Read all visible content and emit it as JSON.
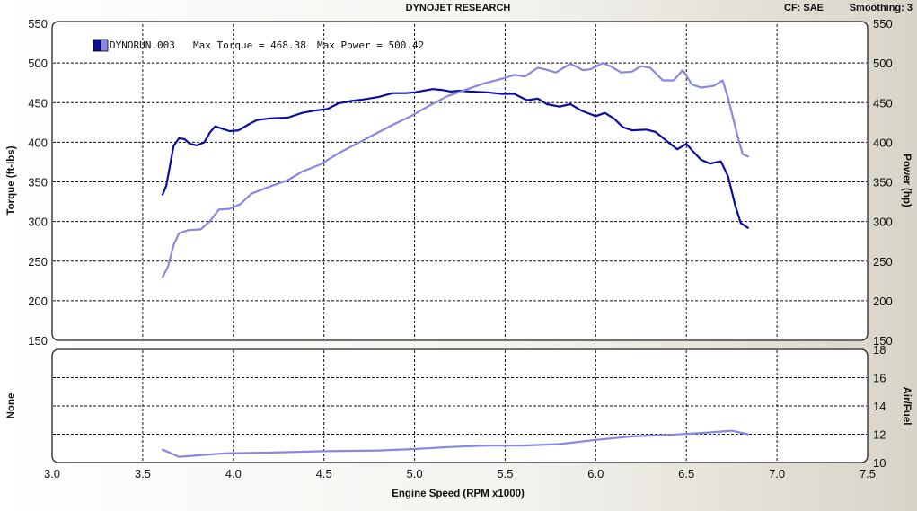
{
  "header": {
    "title": "DYNOJET RESEARCH",
    "cf_label": "CF: SAE",
    "smoothing_label": "Smoothing: 3"
  },
  "chart_data": [
    {
      "type": "line",
      "x_label": "",
      "y_label_left": "Torque (ft-lbs)",
      "y_label_right": "Power (hp)",
      "xlim": [
        3.0,
        7.5
      ],
      "ylim": [
        150,
        550
      ],
      "y_ticks": [
        150,
        200,
        250,
        300,
        350,
        400,
        450,
        500,
        550
      ],
      "grid": true,
      "legend": {
        "position": "top-left",
        "run_name": "DYNORUN.003",
        "torque_text": "Max Torque = 468.38",
        "power_text": "Max Power = 500.42"
      },
      "series": [
        {
          "id": "torque",
          "color": "#0d0da0",
          "points": [
            [
              3.61,
              334
            ],
            [
              3.63,
              345
            ],
            [
              3.65,
              370
            ],
            [
              3.67,
              395
            ],
            [
              3.7,
              405
            ],
            [
              3.73,
              404
            ],
            [
              3.76,
              398
            ],
            [
              3.8,
              396
            ],
            [
              3.84,
              400
            ],
            [
              3.87,
              412
            ],
            [
              3.9,
              420
            ],
            [
              3.94,
              417
            ],
            [
              3.98,
              414
            ],
            [
              4.03,
              415
            ],
            [
              4.08,
              422
            ],
            [
              4.13,
              428
            ],
            [
              4.2,
              430
            ],
            [
              4.3,
              431
            ],
            [
              4.38,
              437
            ],
            [
              4.45,
              440
            ],
            [
              4.52,
              442
            ],
            [
              4.58,
              449
            ],
            [
              4.65,
              452
            ],
            [
              4.72,
              454
            ],
            [
              4.8,
              457
            ],
            [
              4.88,
              462
            ],
            [
              4.95,
              462
            ],
            [
              5.0,
              463
            ],
            [
              5.05,
              465
            ],
            [
              5.1,
              467
            ],
            [
              5.15,
              466
            ],
            [
              5.2,
              464
            ],
            [
              5.25,
              465
            ],
            [
              5.3,
              464
            ],
            [
              5.4,
              463
            ],
            [
              5.48,
              461
            ],
            [
              5.55,
              461
            ],
            [
              5.62,
              453
            ],
            [
              5.68,
              455
            ],
            [
              5.73,
              448
            ],
            [
              5.8,
              445
            ],
            [
              5.86,
              448
            ],
            [
              5.92,
              440
            ],
            [
              6.0,
              433
            ],
            [
              6.05,
              437
            ],
            [
              6.1,
              430
            ],
            [
              6.15,
              419
            ],
            [
              6.2,
              415
            ],
            [
              6.28,
              416
            ],
            [
              6.33,
              413
            ],
            [
              6.4,
              400
            ],
            [
              6.45,
              391
            ],
            [
              6.5,
              398
            ],
            [
              6.53,
              390
            ],
            [
              6.58,
              378
            ],
            [
              6.63,
              373
            ],
            [
              6.69,
              376
            ],
            [
              6.73,
              357
            ],
            [
              6.77,
              320
            ],
            [
              6.8,
              298
            ],
            [
              6.84,
              292
            ]
          ]
        },
        {
          "id": "power",
          "color": "#8888e0",
          "points": [
            [
              3.61,
              230
            ],
            [
              3.64,
              243
            ],
            [
              3.67,
              270
            ],
            [
              3.7,
              285
            ],
            [
              3.75,
              289
            ],
            [
              3.82,
              290
            ],
            [
              3.87,
              300
            ],
            [
              3.92,
              315
            ],
            [
              3.98,
              316
            ],
            [
              4.04,
              322
            ],
            [
              4.1,
              335
            ],
            [
              4.2,
              344
            ],
            [
              4.3,
              352
            ],
            [
              4.38,
              363
            ],
            [
              4.48,
              372
            ],
            [
              4.58,
              386
            ],
            [
              4.68,
              398
            ],
            [
              4.78,
              410
            ],
            [
              4.88,
              422
            ],
            [
              4.98,
              433
            ],
            [
              5.08,
              446
            ],
            [
              5.18,
              458
            ],
            [
              5.28,
              466
            ],
            [
              5.38,
              474
            ],
            [
              5.48,
              480
            ],
            [
              5.55,
              485
            ],
            [
              5.61,
              483
            ],
            [
              5.68,
              494
            ],
            [
              5.72,
              492
            ],
            [
              5.78,
              488
            ],
            [
              5.86,
              499
            ],
            [
              5.93,
              491
            ],
            [
              5.97,
              492
            ],
            [
              6.04,
              500
            ],
            [
              6.08,
              496
            ],
            [
              6.14,
              488
            ],
            [
              6.2,
              489
            ],
            [
              6.25,
              496
            ],
            [
              6.3,
              494
            ],
            [
              6.37,
              478
            ],
            [
              6.43,
              478
            ],
            [
              6.48,
              491
            ],
            [
              6.53,
              473
            ],
            [
              6.58,
              469
            ],
            [
              6.65,
              471
            ],
            [
              6.7,
              478
            ],
            [
              6.73,
              456
            ],
            [
              6.78,
              410
            ],
            [
              6.81,
              385
            ],
            [
              6.84,
              382
            ]
          ]
        }
      ]
    },
    {
      "type": "line",
      "x_label": "Engine Speed (RPM x1000)",
      "y_label_left": "None",
      "y_label_right": "Air/Fuel",
      "xlim": [
        3.0,
        7.5
      ],
      "ylim": [
        10,
        18
      ],
      "x_ticks": [
        "3.0",
        "3.5",
        "4.0",
        "4.5",
        "5.0",
        "5.5",
        "6.0",
        "6.5",
        "7.0",
        "7.5"
      ],
      "y_ticks": [
        10,
        12,
        14,
        16,
        18
      ],
      "grid": true,
      "series": [
        {
          "id": "afr",
          "color": "#8888e0",
          "points": [
            [
              3.61,
              10.9
            ],
            [
              3.64,
              10.75
            ],
            [
              3.7,
              10.4
            ],
            [
              3.8,
              10.5
            ],
            [
              3.95,
              10.65
            ],
            [
              4.2,
              10.7
            ],
            [
              4.5,
              10.8
            ],
            [
              4.8,
              10.85
            ],
            [
              5.0,
              10.95
            ],
            [
              5.2,
              11.1
            ],
            [
              5.4,
              11.2
            ],
            [
              5.6,
              11.2
            ],
            [
              5.8,
              11.3
            ],
            [
              6.0,
              11.6
            ],
            [
              6.2,
              11.85
            ],
            [
              6.4,
              11.95
            ],
            [
              6.6,
              12.1
            ],
            [
              6.75,
              12.25
            ],
            [
              6.84,
              12.0
            ]
          ]
        }
      ]
    }
  ]
}
